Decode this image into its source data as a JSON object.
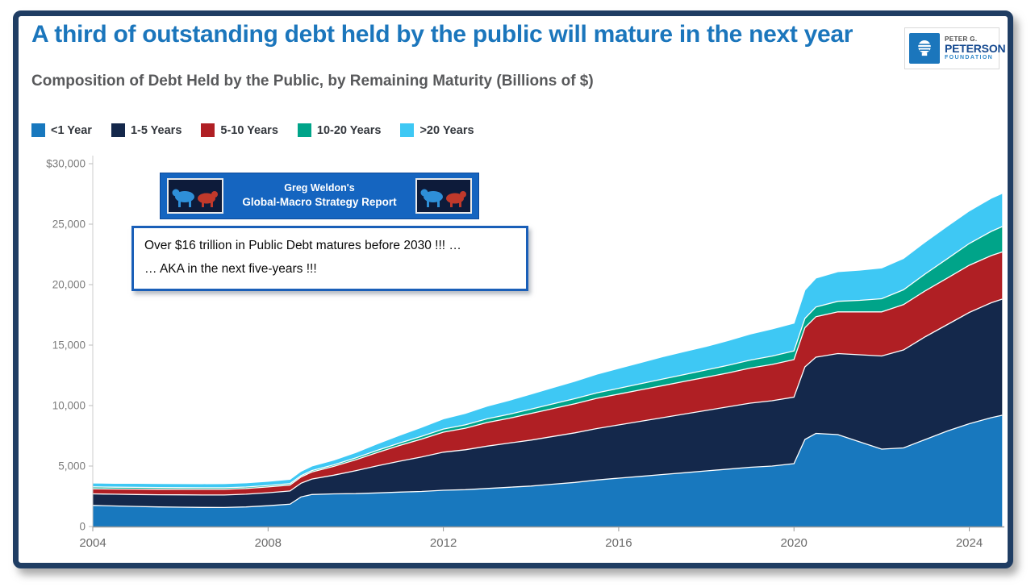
{
  "header": {
    "title": "A third of outstanding debt held by the public will mature in the next year",
    "subtitle": "Composition of Debt Held by the Public, by Remaining Maturity (Billions of $)"
  },
  "logo": {
    "top": "PETER G.",
    "name": "PETERSON",
    "bottom": "FOUNDATION"
  },
  "banner": {
    "line1": "Greg Weldon's",
    "line2": "Global-Macro Strategy Report"
  },
  "note": {
    "line1": "Over $16 trillion in Public Debt matures before 2030 !!! …",
    "line2": "… AKA in the next five-years !!!"
  },
  "chart_data": {
    "type": "area",
    "stacked": true,
    "title": "Composition of Debt Held by the Public, by Remaining Maturity (Billions of $)",
    "xlabel": "",
    "ylabel": "Billions of $",
    "xlim": [
      2004,
      2024.8
    ],
    "ylim": [
      0,
      30000
    ],
    "grid": false,
    "legend_position": "top-left",
    "x": [
      2004,
      2004.5,
      2005,
      2005.5,
      2006,
      2006.5,
      2007,
      2007.5,
      2008,
      2008.5,
      2008.75,
      2009,
      2009.5,
      2010,
      2010.5,
      2011,
      2011.5,
      2012,
      2012.5,
      2013,
      2013.5,
      2014,
      2014.5,
      2015,
      2015.5,
      2016,
      2016.5,
      2017,
      2017.5,
      2018,
      2018.5,
      2019,
      2019.5,
      2020,
      2020.25,
      2020.5,
      2021,
      2021.5,
      2022,
      2022.5,
      2023,
      2023.5,
      2024,
      2024.5,
      2024.75
    ],
    "series": [
      {
        "name": "<1 Year",
        "color": "#1878be",
        "values": [
          1750,
          1700,
          1660,
          1620,
          1600,
          1580,
          1570,
          1620,
          1720,
          1850,
          2450,
          2650,
          2700,
          2720,
          2780,
          2850,
          2900,
          3000,
          3050,
          3150,
          3250,
          3350,
          3500,
          3650,
          3850,
          4000,
          4150,
          4300,
          4450,
          4600,
          4750,
          4900,
          5000,
          5200,
          7200,
          7700,
          7600,
          7000,
          6400,
          6500,
          7200,
          7900,
          8500,
          9000,
          9200
        ]
      },
      {
        "name": "1-5 Years",
        "color": "#14284b",
        "values": [
          950,
          970,
          990,
          1010,
          1020,
          1030,
          1040,
          1050,
          1070,
          1090,
          1130,
          1280,
          1550,
          1900,
          2250,
          2550,
          2850,
          3150,
          3300,
          3500,
          3650,
          3800,
          3950,
          4100,
          4250,
          4400,
          4550,
          4700,
          4850,
          5000,
          5150,
          5300,
          5400,
          5500,
          6000,
          6300,
          6700,
          7200,
          7700,
          8100,
          8500,
          8800,
          9200,
          9500,
          9600
        ]
      },
      {
        "name": "5-10 Years",
        "color": "#b01f24",
        "values": [
          420,
          430,
          440,
          450,
          455,
          460,
          465,
          470,
          480,
          490,
          510,
          580,
          720,
          900,
          1100,
          1300,
          1480,
          1650,
          1780,
          1950,
          2050,
          2200,
          2300,
          2400,
          2500,
          2550,
          2600,
          2650,
          2700,
          2750,
          2800,
          2900,
          3000,
          3100,
          3250,
          3350,
          3450,
          3550,
          3650,
          3750,
          3800,
          3850,
          3900,
          3900,
          3900
        ]
      },
      {
        "name": "10-20 Years",
        "color": "#00a489",
        "values": [
          160,
          155,
          150,
          145,
          140,
          135,
          130,
          125,
          120,
          115,
          115,
          120,
          130,
          150,
          175,
          200,
          230,
          260,
          280,
          310,
          330,
          360,
          390,
          420,
          450,
          480,
          510,
          540,
          570,
          600,
          630,
          660,
          690,
          720,
          760,
          800,
          870,
          950,
          1080,
          1220,
          1400,
          1600,
          1800,
          2000,
          2100
        ]
      },
      {
        "name": ">20 Years",
        "color": "#3ec8f4",
        "values": [
          320,
          325,
          330,
          335,
          340,
          345,
          350,
          355,
          360,
          365,
          370,
          380,
          400,
          450,
          550,
          650,
          750,
          850,
          950,
          1050,
          1150,
          1250,
          1350,
          1450,
          1550,
          1650,
          1750,
          1850,
          1900,
          1950,
          2050,
          2150,
          2250,
          2300,
          2350,
          2400,
          2450,
          2500,
          2550,
          2600,
          2650,
          2700,
          2700,
          2750,
          2750
        ]
      }
    ],
    "yticks": [
      {
        "value": 30000,
        "label": "$30,000"
      },
      {
        "value": 25000,
        "label": "25,000"
      },
      {
        "value": 20000,
        "label": "20,000"
      },
      {
        "value": 15000,
        "label": "15,000"
      },
      {
        "value": 10000,
        "label": "10,000"
      },
      {
        "value": 5000,
        "label": "5,000"
      },
      {
        "value": 0,
        "label": "0"
      }
    ],
    "xticks": [
      {
        "value": 2004,
        "label": "2004"
      },
      {
        "value": 2008,
        "label": "2008"
      },
      {
        "value": 2012,
        "label": "2012"
      },
      {
        "value": 2016,
        "label": "2016"
      },
      {
        "value": 2020,
        "label": "2020"
      },
      {
        "value": 2024,
        "label": "2024"
      }
    ]
  }
}
